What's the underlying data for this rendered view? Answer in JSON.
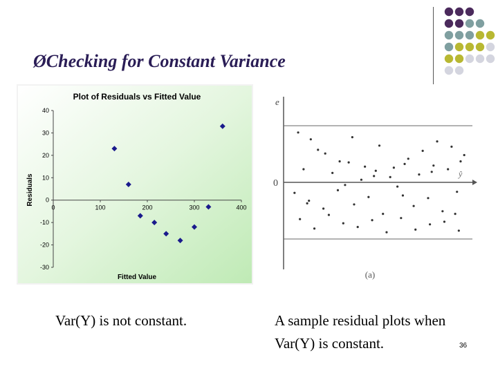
{
  "slide": {
    "title": "Checking for Constant Variance",
    "title_bullet": "Ø",
    "slide_number": "36"
  },
  "decoration": {
    "dot_colors": [
      "#4b2a5c",
      "#7f9fa0",
      "#b8b832",
      "#d4d5df"
    ]
  },
  "captions": {
    "left": "Var(Y) is not constant.",
    "right_line1": "A sample residual plots when",
    "right_line2": "Var(Y) is constant."
  },
  "chart_data": [
    {
      "type": "scatter",
      "title": "Plot of Residuals vs Fitted Value",
      "xlabel": "Fitted Value",
      "ylabel": "Residuals",
      "xlim": [
        0,
        400
      ],
      "ylim": [
        -30,
        40
      ],
      "x_ticks": [
        "0",
        "100",
        "200",
        "300",
        "400"
      ],
      "y_ticks": [
        "-30",
        "-20",
        "-10",
        "0",
        "10",
        "20",
        "30",
        "40"
      ],
      "marker_color": "#1a1a8c",
      "x": [
        130,
        160,
        185,
        215,
        240,
        270,
        300,
        330,
        360
      ],
      "y": [
        23,
        7,
        -7,
        -10,
        -15,
        -18,
        -12,
        -3,
        33
      ]
    },
    {
      "type": "scatter",
      "y_axis_label": "e",
      "x_axis_label": "ŷ",
      "zero_label": "0",
      "panel_label": "(a)",
      "band": [
        -1,
        1
      ],
      "x": [
        0.05,
        0.12,
        0.2,
        0.28,
        0.35,
        0.42,
        0.5,
        0.58,
        0.66,
        0.74,
        0.82,
        0.9,
        0.97,
        0.08,
        0.16,
        0.24,
        0.33,
        0.4,
        0.48,
        0.56,
        0.64,
        0.72,
        0.8,
        0.88,
        0.95,
        0.03,
        0.11,
        0.19,
        0.27,
        0.36,
        0.44,
        0.52,
        0.6,
        0.69,
        0.77,
        0.85,
        0.93,
        0.06,
        0.14,
        0.22,
        0.3,
        0.38,
        0.46,
        0.54,
        0.62,
        0.7,
        0.78,
        0.86,
        0.94,
        0.1,
        0.31,
        0.47,
        0.63,
        0.79,
        0.92
      ],
      "y": [
        0.95,
        0.82,
        0.55,
        0.4,
        0.86,
        0.3,
        0.7,
        0.28,
        0.45,
        0.6,
        0.78,
        0.68,
        0.52,
        0.25,
        0.62,
        0.18,
        0.38,
        0.05,
        0.22,
        0.1,
        0.35,
        0.15,
        0.32,
        0.25,
        0.4,
        -0.2,
        -0.35,
        -0.5,
        -0.15,
        -0.42,
        -0.28,
        -0.6,
        -0.08,
        -0.45,
        -0.3,
        -0.55,
        -0.18,
        -0.7,
        -0.88,
        -0.62,
        -0.78,
        -0.85,
        -0.72,
        -0.95,
        -0.68,
        -0.9,
        -0.8,
        -0.75,
        -0.92,
        -0.4,
        -0.05,
        0.12,
        -0.25,
        0.2,
        -0.6
      ]
    }
  ]
}
